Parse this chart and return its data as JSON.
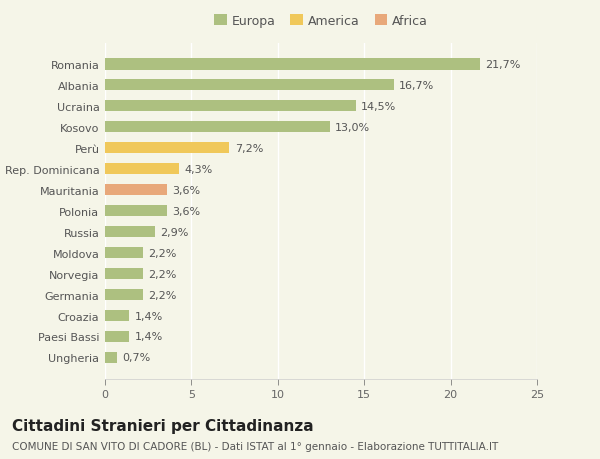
{
  "categories": [
    "Romania",
    "Albania",
    "Ucraina",
    "Kosovo",
    "Perù",
    "Rep. Dominicana",
    "Mauritania",
    "Polonia",
    "Russia",
    "Moldova",
    "Norvegia",
    "Germania",
    "Croazia",
    "Paesi Bassi",
    "Ungheria"
  ],
  "values": [
    21.7,
    16.7,
    14.5,
    13.0,
    7.2,
    4.3,
    3.6,
    3.6,
    2.9,
    2.2,
    2.2,
    2.2,
    1.4,
    1.4,
    0.7
  ],
  "labels": [
    "21,7%",
    "16,7%",
    "14,5%",
    "13,0%",
    "7,2%",
    "4,3%",
    "3,6%",
    "3,6%",
    "2,9%",
    "2,2%",
    "2,2%",
    "2,2%",
    "1,4%",
    "1,4%",
    "0,7%"
  ],
  "colors": [
    "#adc080",
    "#adc080",
    "#adc080",
    "#adc080",
    "#f0c85a",
    "#f0c85a",
    "#e8a87a",
    "#adc080",
    "#adc080",
    "#adc080",
    "#adc080",
    "#adc080",
    "#adc080",
    "#adc080",
    "#adc080"
  ],
  "legend_labels": [
    "Europa",
    "America",
    "Africa"
  ],
  "legend_colors": [
    "#adc080",
    "#f0c85a",
    "#e8a87a"
  ],
  "title": "Cittadini Stranieri per Cittadinanza",
  "subtitle": "COMUNE DI SAN VITO DI CADORE (BL) - Dati ISTAT al 1° gennaio - Elaborazione TUTTITALIA.IT",
  "xlim": [
    0,
    25
  ],
  "xticks": [
    0,
    5,
    10,
    15,
    20,
    25
  ],
  "background_color": "#f5f5e8",
  "bar_height": 0.55,
  "title_fontsize": 11,
  "subtitle_fontsize": 7.5,
  "label_fontsize": 8,
  "tick_fontsize": 8,
  "legend_fontsize": 9
}
